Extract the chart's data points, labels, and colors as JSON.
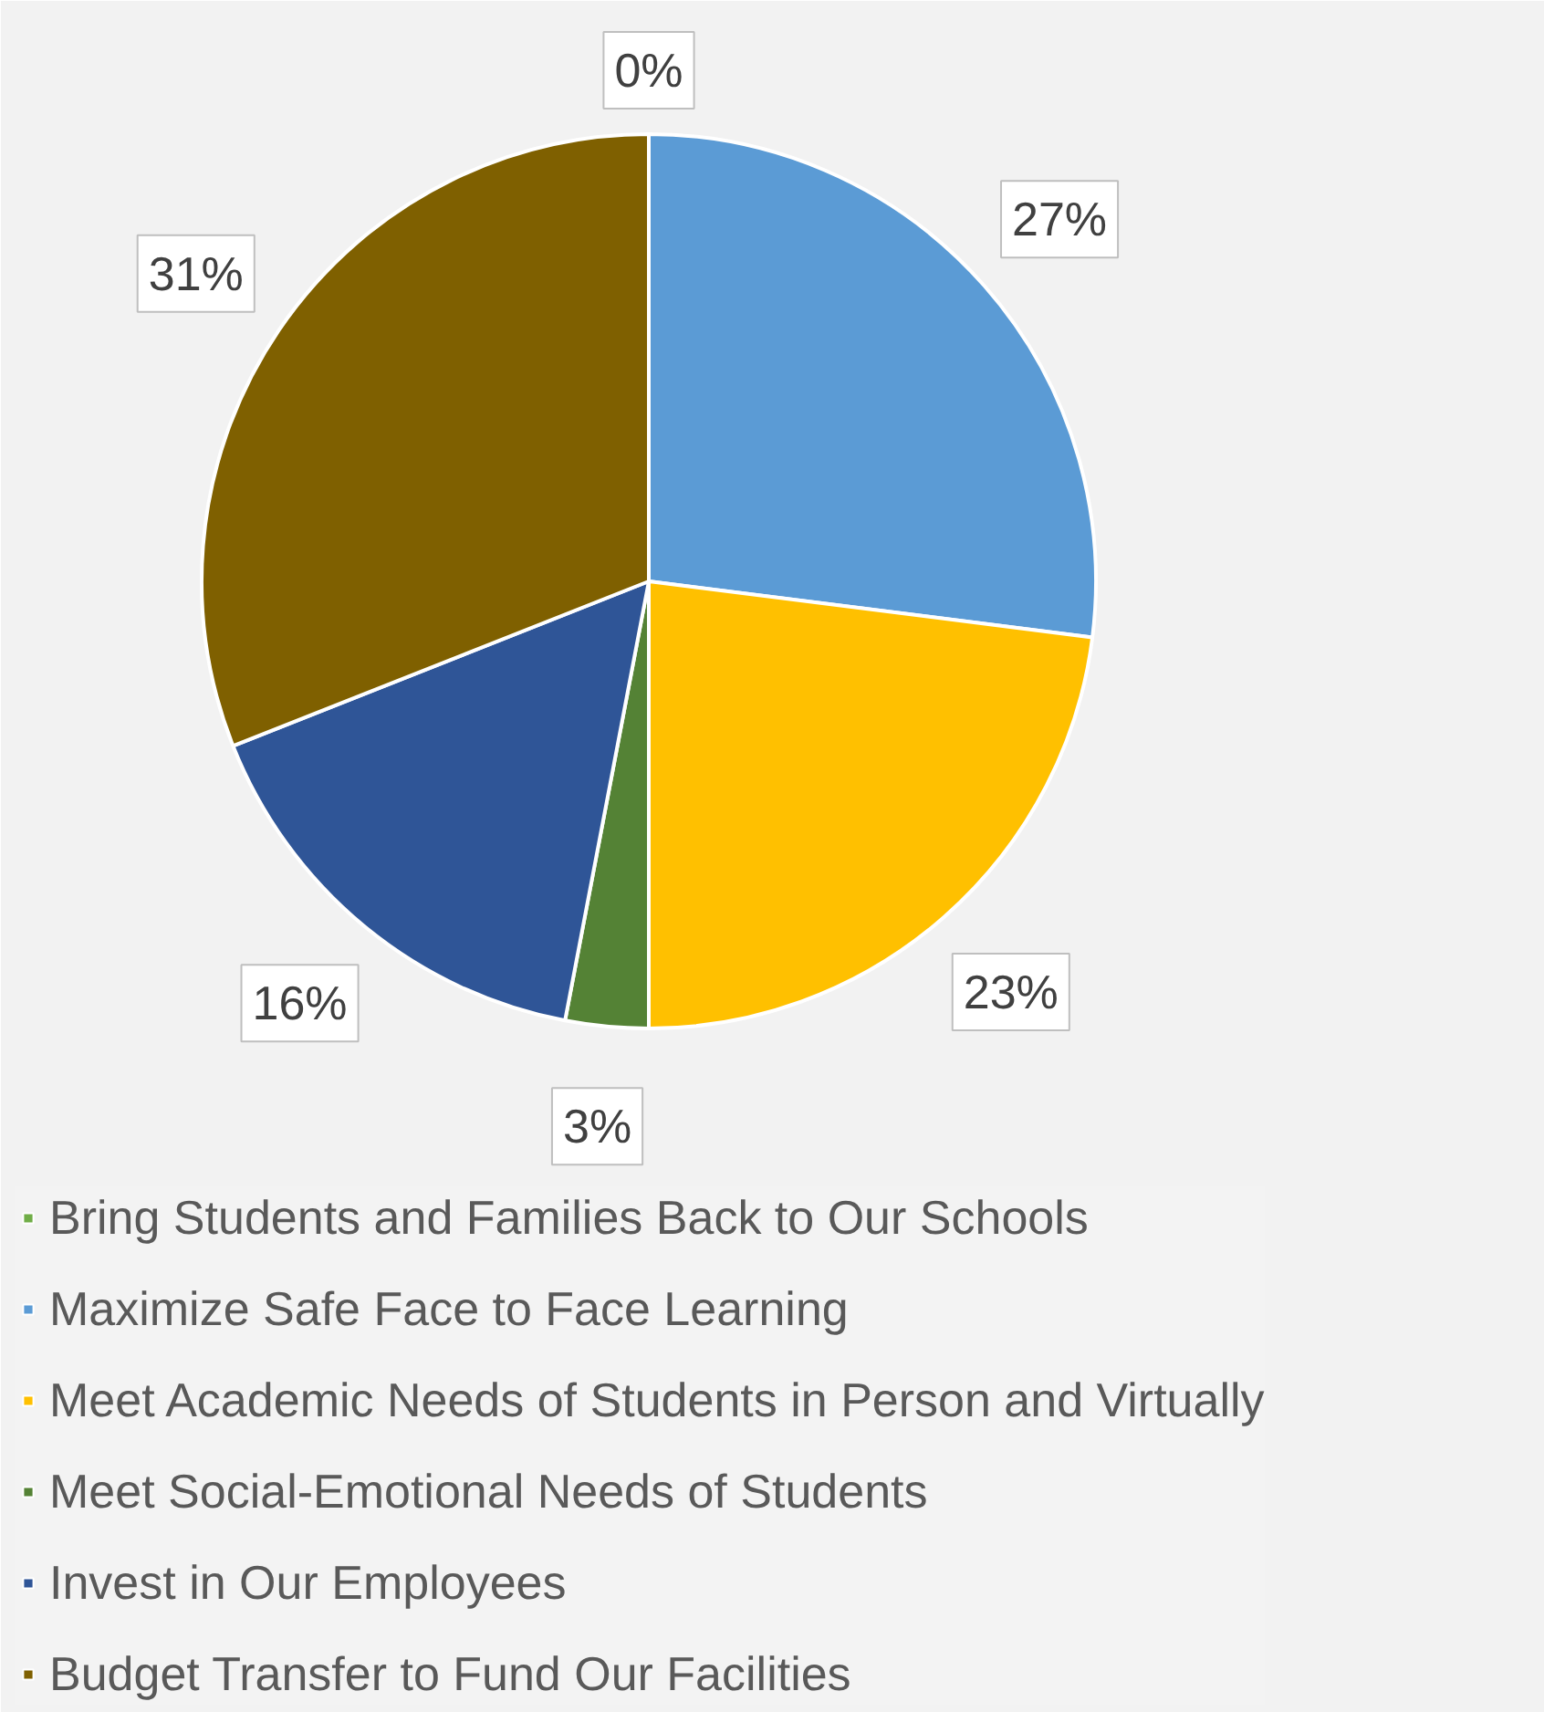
{
  "chart_data": {
    "type": "pie",
    "categories": [
      "Bring Students and Families Back to Our Schools",
      "Maximize Safe Face to Face Learning",
      "Meet Academic Needs of Students in Person and Virtually",
      "Meet Social-Emotional Needs of Students",
      "Invest in Our Employees",
      "Budget Transfer to Fund Our Facilities"
    ],
    "values": [
      0,
      27,
      23,
      3,
      16,
      31
    ],
    "colors": [
      "#70ad47",
      "#5b9bd5",
      "#ffc000",
      "#548235",
      "#2f5597",
      "#7f6000"
    ],
    "value_labels": [
      "0%",
      "27%",
      "23%",
      "3%",
      "16%",
      "31%"
    ],
    "legend": "bottom"
  }
}
